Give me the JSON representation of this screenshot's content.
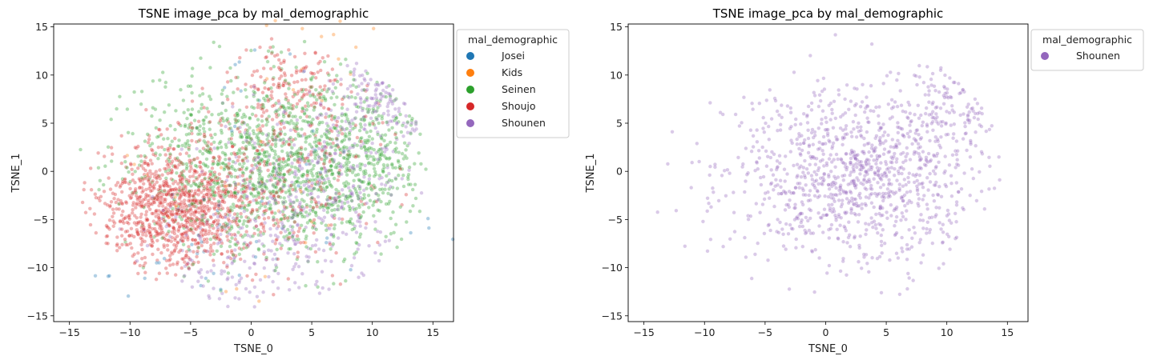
{
  "chart_data": [
    {
      "type": "scatter",
      "title": "TSNE image_pca by mal_demographic",
      "xlabel": "TSNE_0",
      "ylabel": "TSNE_1",
      "xlim": [
        -16.3,
        16.7
      ],
      "ylim": [
        -15.6,
        15.3
      ],
      "xticks": [
        -15,
        -10,
        -5,
        0,
        5,
        10,
        15
      ],
      "yticks": [
        -15,
        -10,
        -5,
        0,
        5,
        10,
        15
      ],
      "xtick_labels": [
        "−15",
        "−10",
        "−5",
        "0",
        "5",
        "10",
        "15"
      ],
      "ytick_labels": [
        "−15",
        "−10",
        "−5",
        "0",
        "5",
        "10",
        "15"
      ],
      "grid": false,
      "legend": {
        "title": "mal_demographic",
        "placement": "outside upper right",
        "entries": [
          "Josei",
          "Kids",
          "Seinen",
          "Shoujo",
          "Shounen"
        ]
      },
      "point_alpha": 0.35,
      "series": [
        {
          "name": "Josei",
          "color": "#1f77b4",
          "count": 60,
          "points": [
            [
              14.6,
              -4.9
            ],
            [
              -5.8,
              -7.2
            ],
            [
              -4.9,
              -7.6
            ],
            [
              -3.1,
              -10.6
            ],
            [
              6.2,
              -7.4
            ],
            [
              -0.8,
              -3.8
            ],
            [
              2.1,
              -9.1
            ],
            [
              -6.5,
              -2.4
            ],
            [
              -1.6,
              4.2
            ],
            [
              5.3,
              2.2
            ],
            [
              -7.8,
              -9.5
            ],
            [
              0.3,
              12.6
            ],
            [
              -2.2,
              8.7
            ],
            [
              -11.8,
              -10.9
            ],
            [
              3.9,
              -1.5
            ],
            [
              -3.9,
              -2.9
            ]
          ]
        },
        {
          "name": "Kids",
          "color": "#ff7f0e",
          "count": 35,
          "points": [
            [
              6.8,
              14.2
            ],
            [
              5.8,
              14.0
            ],
            [
              -6.2,
              -3.6
            ],
            [
              2.4,
              -5.1
            ],
            [
              -1.2,
              -12.2
            ],
            [
              1.3,
              9.6
            ],
            [
              4.1,
              -2.1
            ],
            [
              8.2,
              10.1
            ],
            [
              -8.6,
              -0.4
            ],
            [
              0.8,
              3.1
            ]
          ]
        },
        {
          "name": "Seinen",
          "color": "#2ca02c",
          "count": 1500
        },
        {
          "name": "Shoujo",
          "color": "#d62728",
          "count": 1500
        },
        {
          "name": "Shounen",
          "color": "#9467bd",
          "count": 650
        }
      ]
    },
    {
      "type": "scatter",
      "title": "TSNE image_pca by mal_demographic",
      "xlabel": "TSNE_0",
      "ylabel": "TSNE_1",
      "xlim": [
        -16.3,
        16.7
      ],
      "ylim": [
        -15.6,
        15.3
      ],
      "xticks": [
        -15,
        -10,
        -5,
        0,
        5,
        10,
        15
      ],
      "yticks": [
        -15,
        -10,
        -5,
        0,
        5,
        10,
        15
      ],
      "xtick_labels": [
        "−15",
        "−10",
        "−5",
        "0",
        "5",
        "10",
        "15"
      ],
      "ytick_labels": [
        "−15",
        "−10",
        "−5",
        "0",
        "5",
        "10",
        "15"
      ],
      "grid": false,
      "legend": {
        "title": "mal_demographic",
        "placement": "outside upper right",
        "entries": [
          "Shounen"
        ]
      },
      "point_alpha": 0.35,
      "series": [
        {
          "name": "Shounen",
          "color": "#9467bd",
          "count": 1200
        }
      ]
    }
  ]
}
